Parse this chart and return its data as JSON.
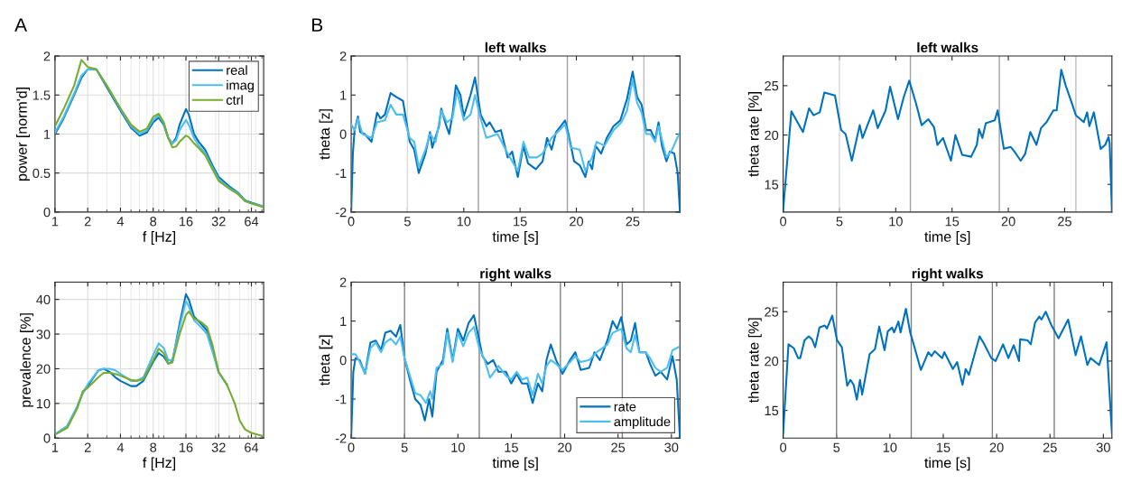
{
  "chart_data": [
    {
      "type": "line",
      "log": "x",
      "grid": true,
      "legend": "top right",
      "xlabel": "f [Hz]",
      "ylabel": "power [norm'd]",
      "annotations": [
        "A"
      ],
      "xlim": [
        1,
        83
      ],
      "xticks": [
        1,
        2,
        4,
        8,
        16,
        32,
        64
      ],
      "ylim": [
        0,
        2
      ],
      "yticks": [
        0,
        0.5,
        1,
        1.5,
        2
      ],
      "x": [
        1,
        1.2,
        1.5,
        1.75,
        2,
        2.4,
        3,
        4,
        5,
        6,
        7,
        8,
        9,
        10,
        11,
        12,
        13,
        14,
        16,
        17,
        19,
        21,
        24,
        28,
        32,
        40,
        48,
        56,
        64,
        83
      ],
      "series": [
        {
          "name": "real",
          "color": "#0072bd",
          "values": [
            1.0,
            1.2,
            1.5,
            1.72,
            1.83,
            1.83,
            1.6,
            1.3,
            1.08,
            0.98,
            1.02,
            1.15,
            1.21,
            1.12,
            0.95,
            0.88,
            0.95,
            1.12,
            1.32,
            1.25,
            1.0,
            0.9,
            0.8,
            0.6,
            0.45,
            0.33,
            0.25,
            0.15,
            0.12,
            0.07
          ]
        },
        {
          "name": "imag",
          "color": "#4dbeee",
          "values": [
            1.02,
            1.22,
            1.52,
            1.75,
            1.83,
            1.83,
            1.62,
            1.32,
            1.1,
            1.0,
            1.05,
            1.18,
            1.24,
            1.14,
            0.95,
            0.88,
            0.92,
            1.05,
            1.18,
            1.12,
            0.95,
            0.85,
            0.76,
            0.57,
            0.42,
            0.31,
            0.24,
            0.14,
            0.11,
            0.07
          ]
        },
        {
          "name": "ctrl",
          "color": "#77ac30",
          "values": [
            1.1,
            1.32,
            1.62,
            1.95,
            1.86,
            1.83,
            1.62,
            1.33,
            1.12,
            1.03,
            1.07,
            1.22,
            1.26,
            1.15,
            0.95,
            0.83,
            0.84,
            0.9,
            0.98,
            0.96,
            0.88,
            0.82,
            0.73,
            0.55,
            0.4,
            0.3,
            0.23,
            0.14,
            0.11,
            0.06
          ]
        }
      ]
    },
    {
      "type": "line",
      "title": "left walks",
      "xlabel": "time [s]",
      "ylabel": "theta [z]",
      "annotations": [
        "B"
      ],
      "xlim": [
        0,
        29.2
      ],
      "xticks": [
        0,
        5,
        10,
        15,
        20,
        25
      ],
      "ylim": [
        -2,
        2
      ],
      "yticks": [
        -2,
        -1,
        0,
        1,
        2
      ],
      "ref_lines": [
        {
          "axis": "x",
          "value": 5.0,
          "color": "#d9d9d9"
        },
        {
          "axis": "x",
          "value": 11.3,
          "color": "#a0a0a0"
        },
        {
          "axis": "x",
          "value": 19.2,
          "color": "#a0a0a0"
        },
        {
          "axis": "x",
          "value": 26.0,
          "color": "#bdbdbd"
        }
      ],
      "series": [
        {
          "color": "#0072bd",
          "x": [
            0,
            0.15,
            0.3,
            0.6,
            0.8,
            1.2,
            1.8,
            2.3,
            2.6,
            3.0,
            3.5,
            4.0,
            4.6,
            5.2,
            5.6,
            6.0,
            6.6,
            7.0,
            7.2,
            7.8,
            8.0,
            8.4,
            8.7,
            9.0,
            9.3,
            9.7,
            10.0,
            10.6,
            11.0,
            11.5,
            12.0,
            12.3,
            12.8,
            13.3,
            13.9,
            14.3,
            14.8,
            15.3,
            15.7,
            16.4,
            17.0,
            17.4,
            17.8,
            18.2,
            19.0,
            19.3,
            19.8,
            20.3,
            20.8,
            21.1,
            21.4,
            21.7,
            22.2,
            22.7,
            23.3,
            23.9,
            24.5,
            25.0,
            25.4,
            25.8,
            26.2,
            26.6,
            27.0,
            27.3,
            27.6,
            28.0,
            28.3,
            28.7,
            29.0,
            29.2
          ],
          "values": [
            -2,
            -0.5,
            0.1,
            0.45,
            0.05,
            0.0,
            -0.2,
            0.55,
            0.4,
            0.5,
            1.05,
            0.95,
            0.85,
            -0.2,
            -0.4,
            -1.0,
            -0.5,
            0.05,
            -0.35,
            0.2,
            0.65,
            0.25,
            0.0,
            0.5,
            1.25,
            1.0,
            0.45,
            1.0,
            1.45,
            0.5,
            0.2,
            0.3,
            0.05,
            0.1,
            -0.6,
            -0.45,
            -1.1,
            -0.3,
            -0.75,
            -0.9,
            -0.7,
            -0.1,
            -0.4,
            0.05,
            0.35,
            0.0,
            -0.7,
            -0.8,
            -1.1,
            -0.7,
            -0.9,
            -0.3,
            -0.5,
            -0.1,
            0.2,
            0.35,
            0.9,
            1.6,
            0.95,
            0.75,
            0.1,
            0.1,
            -0.15,
            0.3,
            -0.3,
            -0.7,
            -0.45,
            -0.5,
            -1.0,
            -2.0
          ]
        },
        {
          "color": "#4dbeee",
          "x": [
            0,
            0.3,
            0.6,
            1.0,
            1.8,
            2.3,
            3.0,
            3.5,
            4.0,
            4.6,
            5.2,
            5.6,
            6.0,
            6.6,
            7.0,
            7.5,
            8.0,
            8.5,
            9.0,
            9.4,
            10.0,
            10.6,
            11.0,
            11.5,
            12.0,
            13.0,
            13.9,
            14.8,
            15.3,
            15.8,
            16.5,
            17.0,
            17.8,
            18.5,
            19.0,
            19.5,
            20.3,
            20.8,
            21.4,
            21.8,
            22.5,
            23.3,
            24.0,
            24.5,
            25.0,
            25.4,
            25.8,
            26.2,
            26.6,
            27.0,
            27.3,
            28.0,
            28.5,
            29.2
          ],
          "values": [
            0.25,
            0.1,
            0.4,
            0.0,
            -0.1,
            0.3,
            0.35,
            0.75,
            0.5,
            0.5,
            -0.1,
            -0.2,
            -0.85,
            -0.4,
            0.0,
            -0.2,
            0.6,
            0.3,
            0.4,
            1.1,
            0.35,
            0.5,
            1.0,
            0.4,
            -0.1,
            0.0,
            -0.5,
            -0.95,
            -0.2,
            -0.6,
            -0.6,
            -0.5,
            -0.1,
            0.1,
            0.25,
            -0.35,
            -0.4,
            -0.95,
            -0.6,
            -0.2,
            -0.3,
            0.1,
            0.3,
            0.6,
            1.4,
            0.8,
            0.55,
            0.0,
            0.0,
            -0.2,
            0.2,
            -0.6,
            -0.4,
            0.05
          ]
        }
      ]
    },
    {
      "type": "line",
      "title": "left walks",
      "xlabel": "time [s]",
      "ylabel": "theta rate [%]",
      "xlim": [
        0,
        29.2
      ],
      "xticks": [
        0,
        5,
        10,
        15,
        20,
        25
      ],
      "ylim": [
        12.2,
        28
      ],
      "yticks": [
        15,
        20,
        25
      ],
      "ref_lines": [
        {
          "axis": "x",
          "value": 5.0,
          "color": "#d9d9d9"
        },
        {
          "axis": "x",
          "value": 11.3,
          "color": "#a0a0a0"
        },
        {
          "axis": "x",
          "value": 19.2,
          "color": "#a0a0a0"
        },
        {
          "axis": "x",
          "value": 26.0,
          "color": "#bdbdbd"
        }
      ],
      "series": [
        {
          "color": "#0072bd",
          "x": [
            0,
            0.73,
            1.76,
            2.3,
            2.7,
            3.25,
            3.66,
            4.6,
            5.15,
            5.55,
            6.1,
            6.8,
            7.05,
            8.0,
            8.4,
            9.1,
            9.5,
            10.2,
            10.7,
            11.2,
            11.8,
            12.3,
            12.9,
            13.4,
            13.7,
            14.2,
            14.9,
            15.3,
            15.9,
            16.7,
            17.2,
            17.4,
            17.7,
            18.0,
            18.8,
            19.05,
            19.6,
            20.2,
            20.5,
            21.1,
            21.5,
            21.95,
            22.5,
            22.9,
            23.4,
            24.0,
            24.3,
            24.7,
            25.1,
            25.5,
            26.0,
            26.7,
            27.0,
            27.2,
            27.6,
            28.2,
            28.6,
            28.9,
            29.0,
            29.2
          ],
          "values": [
            12.4,
            22.4,
            20.3,
            22.7,
            22.0,
            22.3,
            24.3,
            24.0,
            20.5,
            20.1,
            17.4,
            21.0,
            19.7,
            22.5,
            20.7,
            22.5,
            24.9,
            21.6,
            23.8,
            25.5,
            23.2,
            21.0,
            21.6,
            20.8,
            19.0,
            19.7,
            17.4,
            20.0,
            18.0,
            17.8,
            19.0,
            20.6,
            19.7,
            21.2,
            21.5,
            22.5,
            18.6,
            18.8,
            18.4,
            17.4,
            18.1,
            20.3,
            19.0,
            20.7,
            21.3,
            22.5,
            22.5,
            26.6,
            25.0,
            23.7,
            22.0,
            21.3,
            22.3,
            20.9,
            22.3,
            18.6,
            19.0,
            19.8,
            19.2,
            12.3
          ]
        }
      ]
    },
    {
      "type": "line",
      "log": "x",
      "grid": true,
      "xlabel": "f [Hz]",
      "ylabel": "prevalence [%]",
      "xlim": [
        1,
        83
      ],
      "xticks": [
        1,
        2,
        4,
        8,
        16,
        32,
        64
      ],
      "ylim": [
        0,
        45
      ],
      "yticks": [
        0,
        10,
        20,
        30,
        40
      ],
      "x": [
        1,
        1.3,
        1.6,
        1.8,
        2,
        2.5,
        2.8,
        3.2,
        3.6,
        4,
        5,
        5.6,
        6.5,
        8,
        9,
        10,
        11,
        12,
        14,
        16,
        17,
        19,
        22,
        25,
        28,
        32,
        38,
        45,
        50,
        56,
        64,
        83
      ],
      "series": [
        {
          "color": "#0072bd",
          "values": [
            1,
            3.5,
            9,
            13,
            15,
            19.5,
            20,
            19,
            17.5,
            16.5,
            15,
            15,
            16.5,
            22,
            24.5,
            23.5,
            21.5,
            22,
            33,
            41.5,
            40,
            35,
            33,
            31,
            26,
            19,
            15.5,
            null,
            null,
            null,
            null,
            null
          ]
        },
        {
          "color": "#4dbeee",
          "values": [
            1,
            3.5,
            9,
            13,
            15.5,
            19.5,
            20,
            20,
            19.5,
            18.5,
            16.5,
            16.5,
            17.5,
            24,
            27.3,
            26,
            22.5,
            22.5,
            32,
            39.5,
            38,
            34,
            32,
            30,
            25,
            19,
            15.5,
            null,
            null,
            null,
            null,
            null
          ]
        },
        {
          "color": "#77ac30",
          "values": [
            1,
            3,
            8.5,
            13.5,
            14.5,
            17.5,
            18.8,
            18.8,
            18.5,
            18,
            16.8,
            16.5,
            17,
            22.5,
            25.8,
            24.5,
            21.5,
            21.8,
            30,
            35.5,
            36.5,
            34.5,
            33.5,
            32,
            27,
            19,
            15.5,
            10,
            5,
            2.5,
            1.5,
            0.5
          ]
        }
      ]
    },
    {
      "type": "line",
      "title": "right walks",
      "xlabel": "time [s]",
      "ylabel": "theta [z]",
      "legend": "bottom right",
      "xlim": [
        0,
        30.8
      ],
      "xticks": [
        0,
        5,
        10,
        15,
        20,
        25,
        30
      ],
      "ylim": [
        -2,
        2
      ],
      "yticks": [
        -2,
        -1,
        0,
        1,
        2
      ],
      "ref_lines": [
        {
          "axis": "x",
          "value": 5.0,
          "color": "#808080"
        },
        {
          "axis": "x",
          "value": 12.0,
          "color": "#808080"
        },
        {
          "axis": "x",
          "value": 19.6,
          "color": "#808080"
        },
        {
          "axis": "x",
          "value": 25.4,
          "color": "#808080"
        }
      ],
      "series": [
        {
          "name": "rate",
          "color": "#0072bd",
          "x": [
            0,
            0.2,
            0.4,
            0.8,
            1.3,
            1.8,
            2.3,
            2.8,
            3.2,
            3.7,
            4.2,
            4.6,
            5.0,
            5.5,
            6.0,
            6.5,
            6.9,
            7.3,
            7.6,
            8.0,
            8.6,
            9.0,
            9.5,
            10.0,
            10.5,
            11.0,
            11.5,
            12.0,
            12.3,
            12.8,
            13.3,
            13.8,
            14.5,
            15.0,
            15.5,
            16.0,
            16.5,
            17.0,
            17.5,
            17.9,
            18.3,
            18.7,
            19.2,
            19.8,
            20.5,
            21.0,
            21.5,
            22.3,
            22.8,
            23.3,
            24.0,
            24.5,
            24.9,
            25.3,
            25.8,
            26.2,
            26.6,
            27.0,
            27.6,
            28.0,
            28.5,
            29.0,
            29.6,
            30.1,
            30.5,
            30.8
          ],
          "values": [
            -2,
            -0.3,
            0.05,
            0.0,
            -0.35,
            0.45,
            0.5,
            0.25,
            0.7,
            0.75,
            0.6,
            0.9,
            0.05,
            -0.5,
            -1.0,
            -1.15,
            -1.55,
            -1.0,
            -1.45,
            -0.3,
            0.0,
            0.8,
            0.0,
            0.8,
            0.5,
            0.95,
            1.15,
            0.5,
            0.1,
            -0.1,
            0.0,
            -0.3,
            -0.3,
            -0.6,
            -0.35,
            -0.6,
            -0.6,
            -1.1,
            -0.6,
            -0.8,
            0.0,
            0.4,
            0.0,
            -0.35,
            0.0,
            0.2,
            -0.25,
            -0.2,
            0.2,
            0.0,
            0.5,
            1.0,
            0.8,
            1.1,
            0.4,
            0.5,
            0.95,
            0.2,
            0.2,
            -0.1,
            -0.4,
            -0.3,
            -0.5,
            0.1,
            -0.5,
            -2.0
          ]
        },
        {
          "name": "amplitude",
          "color": "#4dbeee",
          "x": [
            0,
            0.4,
            0.8,
            1.3,
            1.8,
            2.3,
            2.8,
            3.2,
            3.7,
            4.2,
            4.6,
            5.0,
            5.5,
            6.0,
            6.5,
            7.0,
            7.4,
            7.6,
            8.0,
            8.6,
            9.0,
            9.5,
            10.0,
            10.5,
            11.0,
            11.5,
            12.0,
            12.5,
            13.0,
            13.8,
            14.5,
            15.0,
            15.5,
            16.0,
            16.5,
            17.0,
            17.5,
            17.9,
            18.3,
            18.7,
            19.2,
            19.8,
            20.5,
            21.0,
            21.5,
            22.3,
            23.0,
            24.0,
            24.5,
            25.3,
            25.8,
            26.2,
            26.6,
            27.0,
            27.6,
            28.0,
            28.5,
            29.0,
            29.6,
            30.1,
            30.8
          ],
          "values": [
            0.15,
            0.15,
            -0.05,
            -0.35,
            0.3,
            0.45,
            0.2,
            0.45,
            0.55,
            0.4,
            0.6,
            0.05,
            -0.4,
            -0.85,
            -0.9,
            -1.1,
            -0.8,
            -1.0,
            -0.2,
            -0.1,
            0.7,
            -0.05,
            0.7,
            0.35,
            0.7,
            0.85,
            0.3,
            0.0,
            -0.45,
            -0.15,
            -0.4,
            -0.5,
            -0.3,
            -0.5,
            -0.45,
            -0.9,
            -0.35,
            -0.6,
            -0.15,
            0.0,
            -0.1,
            -0.25,
            -0.05,
            0.1,
            -0.05,
            0.0,
            0.2,
            0.4,
            0.7,
            0.8,
            0.3,
            0.2,
            0.65,
            0.2,
            0.2,
            0.05,
            -0.2,
            -0.3,
            -0.2,
            0.25,
            0.35
          ]
        }
      ]
    },
    {
      "type": "line",
      "title": "right walks",
      "xlabel": "time [s]",
      "ylabel": "theta rate [%]",
      "xlim": [
        0,
        30.8
      ],
      "xticks": [
        0,
        5,
        10,
        15,
        20,
        25,
        30
      ],
      "ylim": [
        12.2,
        28
      ],
      "yticks": [
        15,
        20,
        25
      ],
      "ref_lines": [
        {
          "axis": "x",
          "value": 5.0,
          "color": "#808080"
        },
        {
          "axis": "x",
          "value": 12.0,
          "color": "#808080"
        },
        {
          "axis": "x",
          "value": 19.6,
          "color": "#808080"
        },
        {
          "axis": "x",
          "value": 25.4,
          "color": "#808080"
        }
      ],
      "series": [
        {
          "color": "#0072bd",
          "x": [
            0,
            0.5,
            1.0,
            1.4,
            1.6,
            2.0,
            2.4,
            2.7,
            3.0,
            3.4,
            3.9,
            4.1,
            4.6,
            5.05,
            5.5,
            6.0,
            6.3,
            6.6,
            6.9,
            7.2,
            7.4,
            8.1,
            8.6,
            9.0,
            9.5,
            9.8,
            10.2,
            10.4,
            10.8,
            11.0,
            11.5,
            11.9,
            12.2,
            12.9,
            13.6,
            13.9,
            14.2,
            14.9,
            15.1,
            15.9,
            16.3,
            16.8,
            17.1,
            17.4,
            18.4,
            18.8,
            19.5,
            19.9,
            20.6,
            21.1,
            21.6,
            22.1,
            22.2,
            22.9,
            23.2,
            23.6,
            24.0,
            24.2,
            24.6,
            25.1,
            25.8,
            26.7,
            27.4,
            27.9,
            28.5,
            28.8,
            29.6,
            30.3,
            30.8
          ],
          "values": [
            12.7,
            21.7,
            21.3,
            20.3,
            20.3,
            22.1,
            22.5,
            22.2,
            21.4,
            23.4,
            23.6,
            23.3,
            24.6,
            22.1,
            21.4,
            17.5,
            18.1,
            17.6,
            16.1,
            18.1,
            16.6,
            20.7,
            21.2,
            23.5,
            21.1,
            23.0,
            23.4,
            22.9,
            24.0,
            22.9,
            25.3,
            22.9,
            21.8,
            19.1,
            20.9,
            20.5,
            21.0,
            20.3,
            20.9,
            19.2,
            19.9,
            17.6,
            19.2,
            18.6,
            22.5,
            21.8,
            20.3,
            20.0,
            21.7,
            20.3,
            21.6,
            20.0,
            22.2,
            22.1,
            21.7,
            23.9,
            24.5,
            24.2,
            25.0,
            23.7,
            22.3,
            24.2,
            20.6,
            22.5,
            19.6,
            20.3,
            19.6,
            21.9,
            12.7
          ]
        }
      ]
    }
  ]
}
